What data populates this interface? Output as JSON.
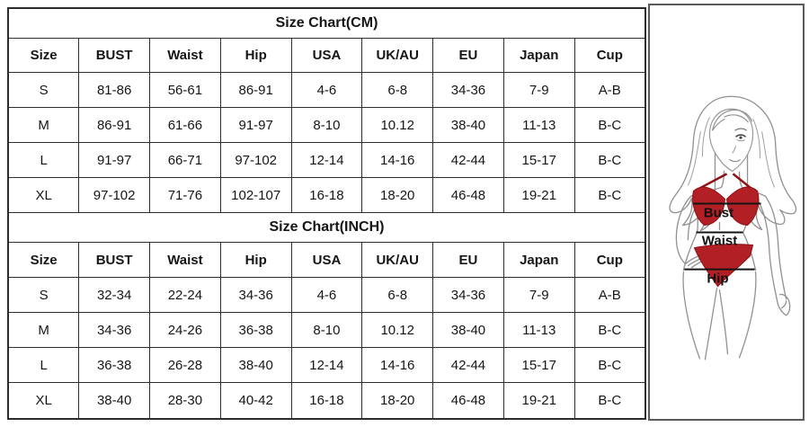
{
  "tables": [
    {
      "title": "Size Chart(CM)",
      "columns": [
        "Size",
        "BUST",
        "Waist",
        "Hip",
        "USA",
        "UK/AU",
        "EU",
        "Japan",
        "Cup"
      ],
      "rows": [
        [
          "S",
          "81-86",
          "56-61",
          "86-91",
          "4-6",
          "6-8",
          "34-36",
          "7-9",
          "A-B"
        ],
        [
          "M",
          "86-91",
          "61-66",
          "91-97",
          "8-10",
          "10.12",
          "38-40",
          "11-13",
          "B-C"
        ],
        [
          "L",
          "91-97",
          "66-71",
          "97-102",
          "12-14",
          "14-16",
          "42-44",
          "15-17",
          "B-C"
        ],
        [
          "XL",
          "97-102",
          "71-76",
          "102-107",
          "16-18",
          "18-20",
          "46-48",
          "19-21",
          "B-C"
        ]
      ]
    },
    {
      "title": "Size Chart(INCH)",
      "columns": [
        "Size",
        "BUST",
        "Waist",
        "Hip",
        "USA",
        "UK/AU",
        "EU",
        "Japan",
        "Cup"
      ],
      "rows": [
        [
          "S",
          "32-34",
          "22-24",
          "34-36",
          "4-6",
          "6-8",
          "34-36",
          "7-9",
          "A-B"
        ],
        [
          "M",
          "34-36",
          "24-26",
          "36-38",
          "8-10",
          "10.12",
          "38-40",
          "11-13",
          "B-C"
        ],
        [
          "L",
          "36-38",
          "26-28",
          "38-40",
          "12-14",
          "14-16",
          "42-44",
          "15-17",
          "B-C"
        ],
        [
          "XL",
          "38-40",
          "28-30",
          "40-42",
          "16-18",
          "18-20",
          "46-48",
          "19-21",
          "B-C"
        ]
      ]
    }
  ],
  "figure": {
    "labels": {
      "bust": "Bust",
      "waist": "Waist",
      "hip": "Hip"
    },
    "colors": {
      "bikini": "#b21f24",
      "bikini_stroke": "#8c1317",
      "outline": "#919191",
      "measure_line": "#141414"
    }
  }
}
